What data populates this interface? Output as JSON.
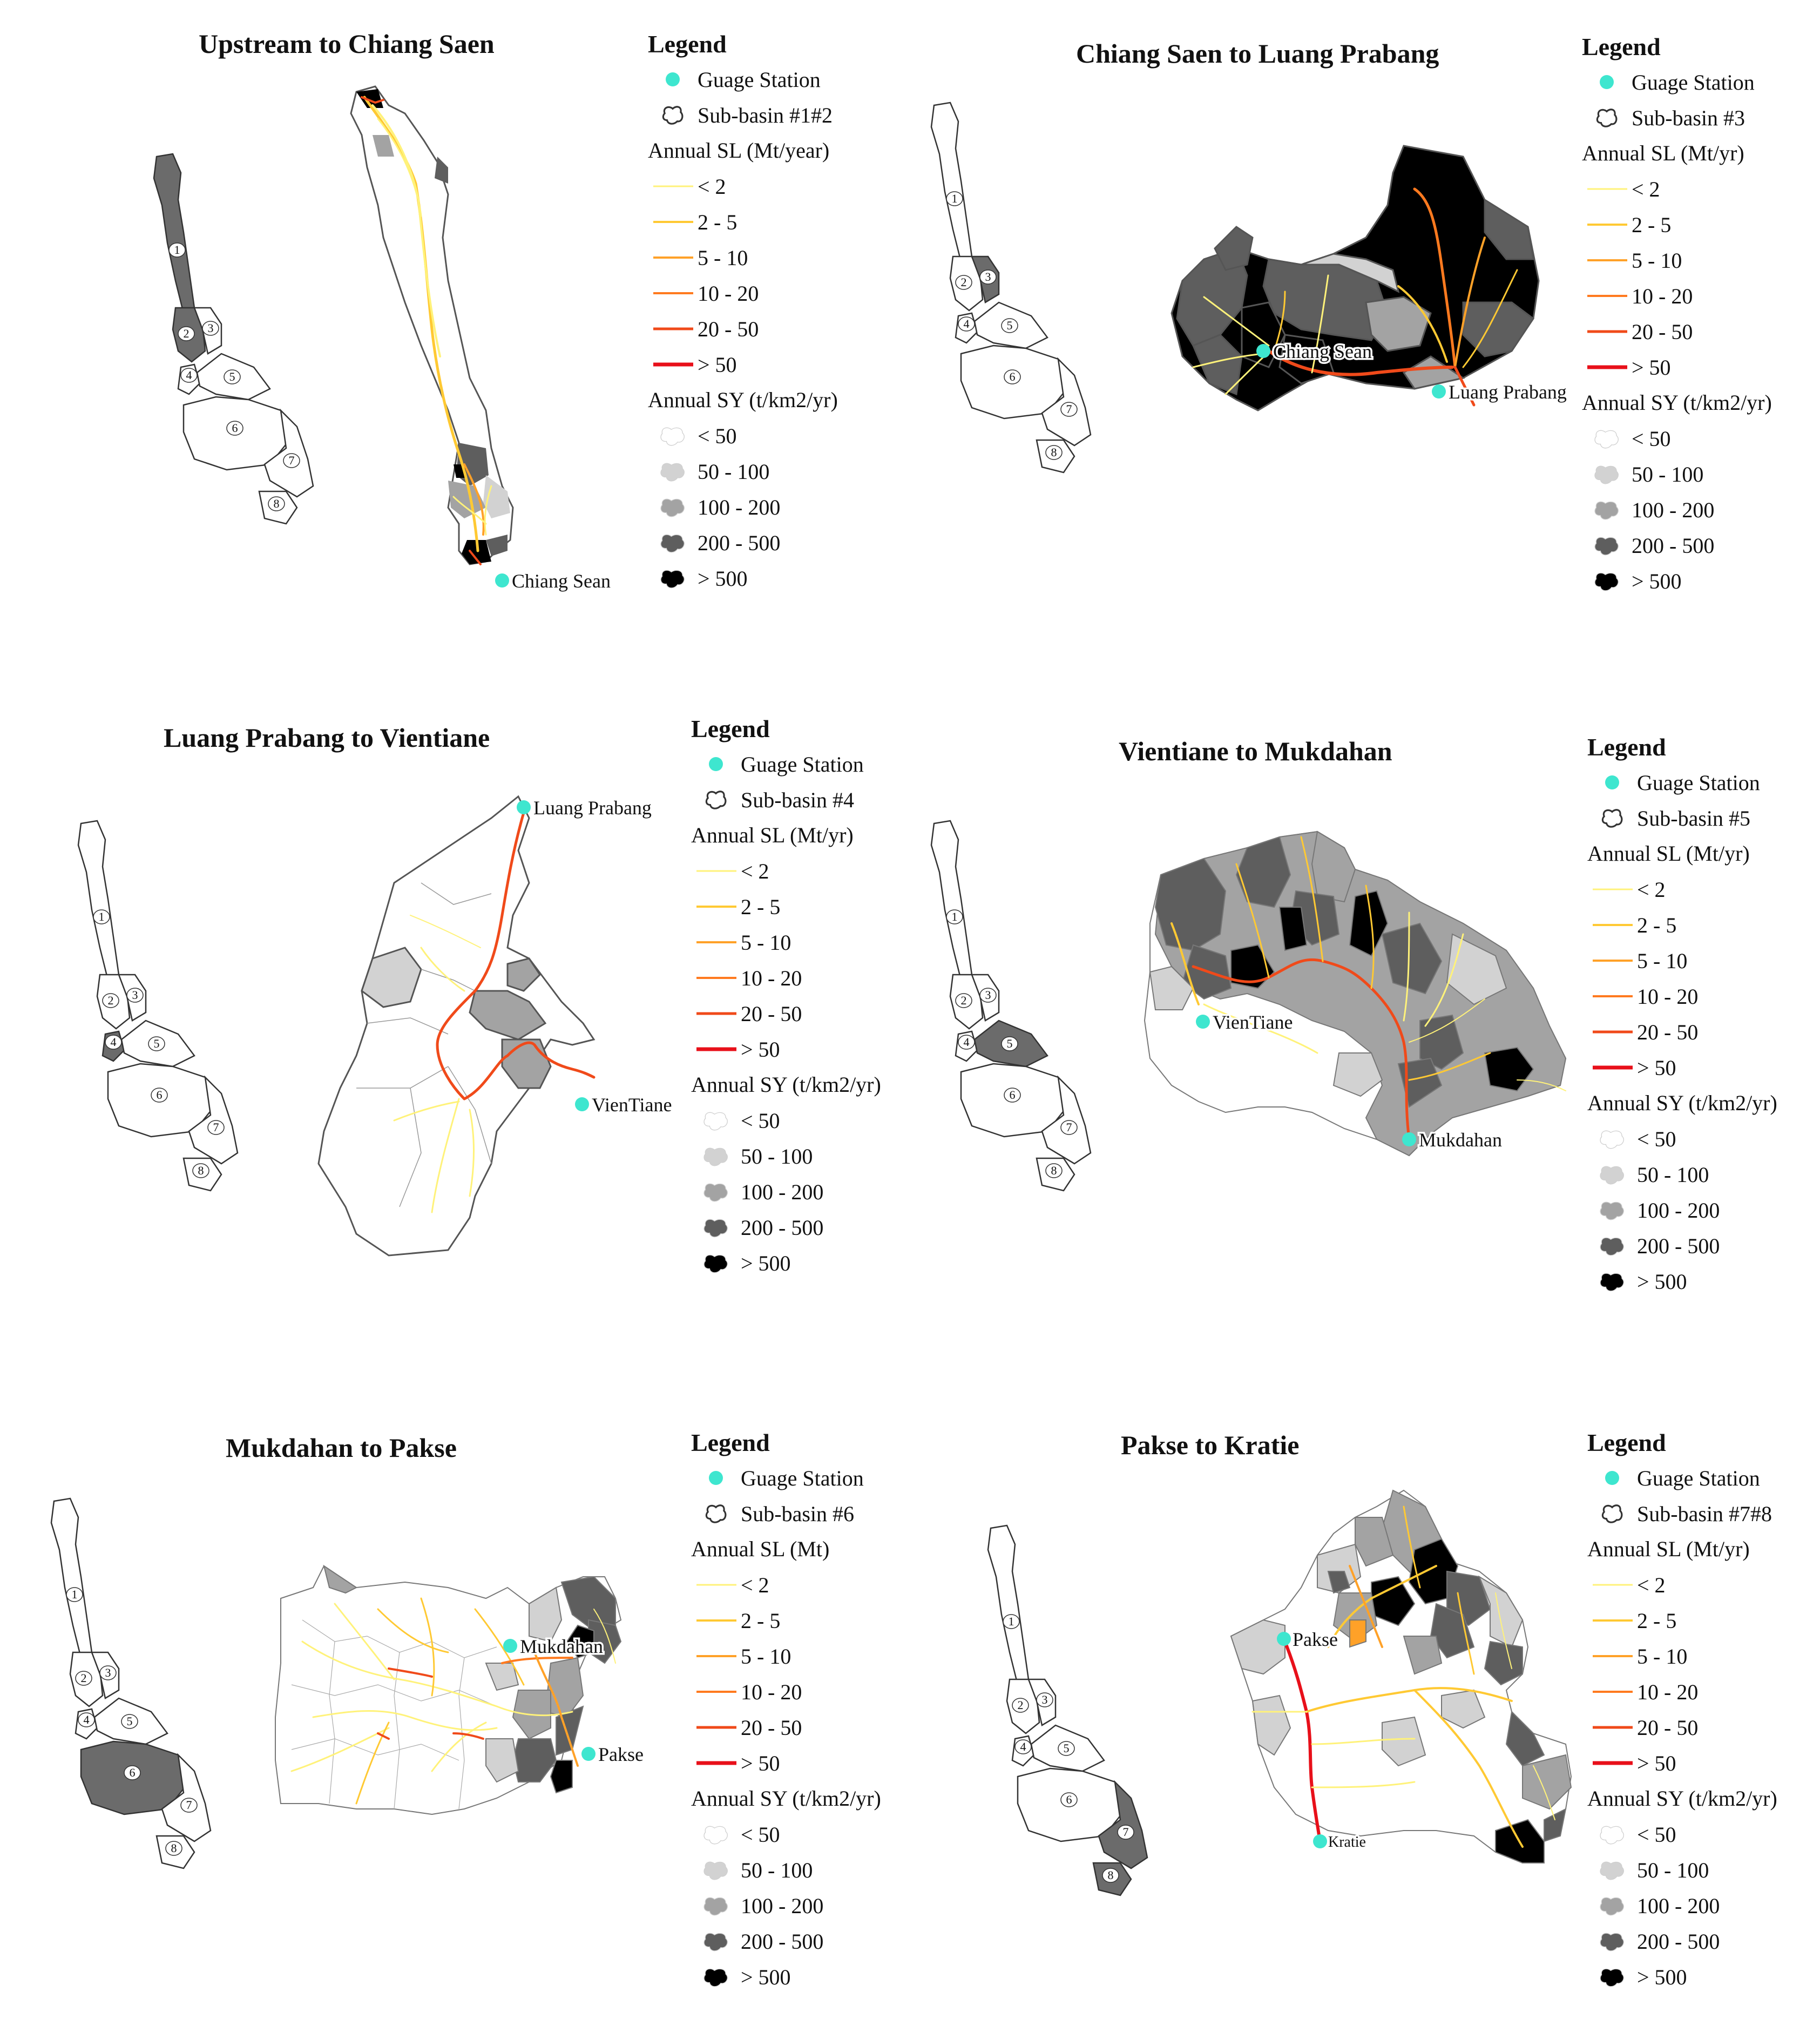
{
  "colors": {
    "station": "#3ee6cf",
    "sl": [
      "#fff27a",
      "#ffc933",
      "#ffa128",
      "#ff7a1f",
      "#f04a1a",
      "#e8101a"
    ],
    "sy": [
      "#ffffff",
      "#d2d2d2",
      "#a3a3a3",
      "#5e5e5e",
      "#000000"
    ],
    "border": "#555555"
  },
  "panels": [
    {
      "title": "Upstream to Chiang Saen",
      "legend": {
        "heading": "Legend",
        "station": "Guage Station",
        "subbasin": "Sub-basin #1#2",
        "sl_title": "Annual SL (Mt/year)",
        "sl_classes": [
          "< 2",
          "2 - 5",
          "5 - 10",
          "10 - 20",
          "20 - 50",
          "> 50"
        ],
        "sy_title": "Annual SY (t/km2/yr)",
        "sy_classes": [
          "< 50",
          "50 - 100",
          "100 - 200",
          "200 - 500",
          "> 500"
        ]
      },
      "stations": [
        "Chiang Sean"
      ],
      "highlight": [
        1,
        2
      ]
    },
    {
      "title": "Chiang Saen to Luang Prabang",
      "legend": {
        "heading": "Legend",
        "station": "Guage Station",
        "subbasin": "Sub-basin #3",
        "sl_title": "Annual SL (Mt/yr)",
        "sl_classes": [
          "< 2",
          "2 - 5",
          "5 - 10",
          "10 - 20",
          "20 - 50",
          "> 50"
        ],
        "sy_title": "Annual SY (t/km2/yr)",
        "sy_classes": [
          "< 50",
          "50 - 100",
          "100 - 200",
          "200 - 500",
          "> 500"
        ]
      },
      "stations": [
        "Chiang Sean",
        "Luang Prabang"
      ],
      "highlight": [
        3
      ]
    },
    {
      "title": "Luang Prabang to Vientiane",
      "legend": {
        "heading": "Legend",
        "station": "Guage Station",
        "subbasin": "Sub-basin #4",
        "sl_title": "Annual SL (Mt/yr)",
        "sl_classes": [
          "< 2",
          "2 - 5",
          "5 - 10",
          "10 - 20",
          "20 - 50",
          "> 50"
        ],
        "sy_title": "Annual SY (t/km2/yr)",
        "sy_classes": [
          "< 50",
          "50 - 100",
          "100 - 200",
          "200 - 500",
          "> 500"
        ]
      },
      "stations": [
        "Luang Prabang",
        "VienTiane"
      ],
      "highlight": [
        4
      ]
    },
    {
      "title": "Vientiane to Mukdahan",
      "legend": {
        "heading": "Legend",
        "station": "Guage Station",
        "subbasin": "Sub-basin #5",
        "sl_title": "Annual SL (Mt/yr)",
        "sl_classes": [
          "< 2",
          "2 - 5",
          "5 - 10",
          "10 - 20",
          "20 - 50",
          "> 50"
        ],
        "sy_title": "Annual SY (t/km2/yr)",
        "sy_classes": [
          "< 50",
          "50 - 100",
          "100 - 200",
          "200 - 500",
          "> 500"
        ]
      },
      "stations": [
        "VienTiane",
        "Mukdahan"
      ],
      "highlight": [
        5
      ]
    },
    {
      "title": "Mukdahan to Pakse",
      "legend": {
        "heading": "Legend",
        "station": "Guage Station",
        "subbasin": "Sub-basin #6",
        "sl_title": "Annual SL (Mt)",
        "sl_classes": [
          "< 2",
          "2 - 5",
          "5 - 10",
          "10 - 20",
          "20 - 50",
          "> 50"
        ],
        "sy_title": "Annual SY (t/km2/yr)",
        "sy_classes": [
          "< 50",
          "50 - 100",
          "100 - 200",
          "200 - 500",
          "> 500"
        ]
      },
      "stations": [
        "Mukdahan",
        "Pakse"
      ],
      "highlight": [
        6
      ]
    },
    {
      "title": "Pakse to Kratie",
      "legend": {
        "heading": "Legend",
        "station": "Guage Station",
        "subbasin": "Sub-basin #7#8",
        "sl_title": "Annual SL (Mt/yr)",
        "sl_classes": [
          "< 2",
          "2 - 5",
          "5 - 10",
          "10 - 20",
          "20 - 50",
          "> 50"
        ],
        "sy_title": "Annual SY (t/km2/yr)",
        "sy_classes": [
          "< 50",
          "50 - 100",
          "100 - 200",
          "200 - 500",
          "> 500"
        ]
      },
      "stations": [
        "Pakse",
        "Kratie"
      ],
      "highlight": [
        7,
        8
      ]
    }
  ],
  "basin_numbers": [
    "1",
    "2",
    "3",
    "4",
    "5",
    "6",
    "7",
    "8"
  ]
}
